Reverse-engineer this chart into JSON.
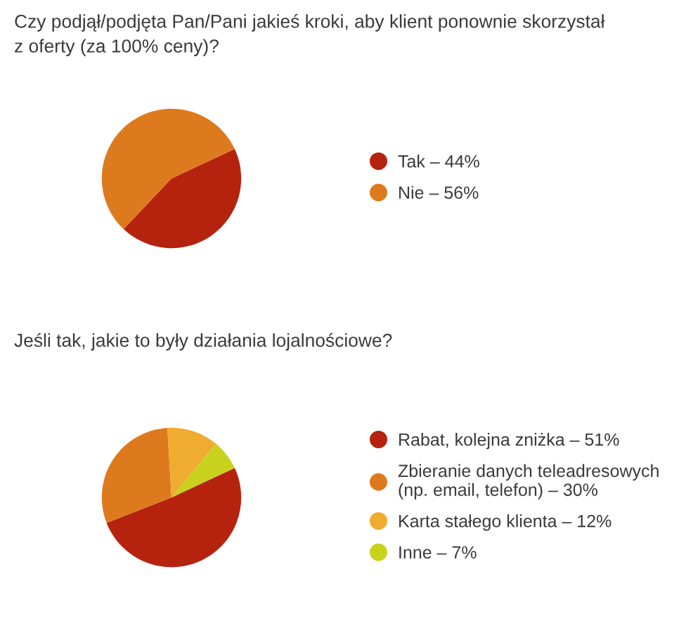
{
  "chart_data": [
    {
      "type": "pie",
      "title": "Czy podjął/podjęta Pan/Pani jakieś kroki, aby klient ponownie skorzystał\nz oferty (za 100% ceny)?",
      "categories": [
        "Tak – 44%",
        "Nie – 56%"
      ],
      "values": [
        44,
        56
      ],
      "colors": [
        "#b5230f",
        "#de7a1e"
      ],
      "legend": "right"
    },
    {
      "type": "pie",
      "title": "Jeśli tak, jakie to były działania lojalnościowe?",
      "categories": [
        "Rabat, kolejna zniżka – 51%",
        "Zbieranie danych teleadresowych\n(np. email, telefon) – 30%",
        "Karta stałego klienta – 12%",
        "Inne – 7%"
      ],
      "values": [
        51,
        30,
        12,
        7
      ],
      "colors": [
        "#b5230f",
        "#de7a1e",
        "#f0ac30",
        "#c8d21e"
      ],
      "legend": "right"
    }
  ]
}
